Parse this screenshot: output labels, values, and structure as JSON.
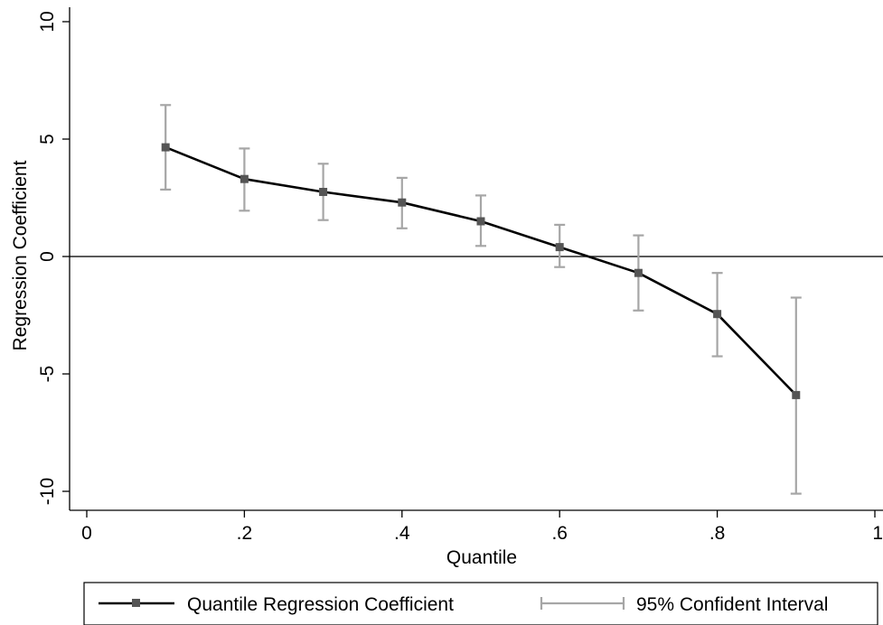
{
  "chart_data": {
    "type": "line",
    "xlabel": "Quantile",
    "ylabel": "Regression Coefficient",
    "xlim": [
      0,
      1
    ],
    "ylim": [
      -10,
      10
    ],
    "x_ticks": [
      0,
      0.2,
      0.4,
      0.6,
      0.8,
      1
    ],
    "x_tick_labels": [
      "0",
      ".2",
      ".4",
      ".6",
      ".8",
      "1"
    ],
    "y_ticks": [
      -10,
      -5,
      0,
      5,
      10
    ],
    "y_tick_labels": [
      "-10",
      "-5",
      "0",
      "5",
      "10"
    ],
    "reference_line_y": 0,
    "grid": false,
    "legend_position": "bottom",
    "colors": {
      "line": "#000000",
      "marker": "#555555",
      "ci": "#a6a6a6",
      "axis": "#000000"
    },
    "series": [
      {
        "name": "Quantile Regression Coefficient",
        "x": [
          0.1,
          0.2,
          0.3,
          0.4,
          0.5,
          0.6,
          0.7,
          0.8,
          0.9
        ],
        "y": [
          4.65,
          3.3,
          2.75,
          2.3,
          1.5,
          0.4,
          -0.7,
          -2.45,
          -5.9
        ]
      },
      {
        "name": "95% Confident Interval",
        "x": [
          0.1,
          0.2,
          0.3,
          0.4,
          0.5,
          0.6,
          0.7,
          0.8,
          0.9
        ],
        "lower": [
          2.85,
          1.95,
          1.55,
          1.2,
          0.45,
          -0.45,
          -2.3,
          -4.25,
          -10.1
        ],
        "upper": [
          6.45,
          4.6,
          3.95,
          3.35,
          2.6,
          1.35,
          0.9,
          -0.7,
          -1.75
        ]
      }
    ]
  }
}
